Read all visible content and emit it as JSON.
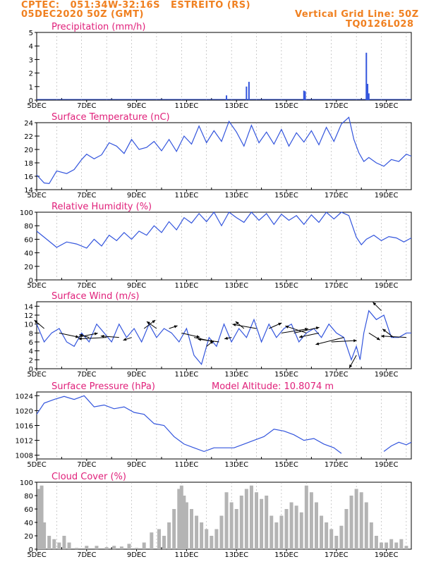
{
  "header": {
    "line1": "CPTEC:   051:34W-32:16S   ESTREITO (RS)",
    "line2": "05DEC2020 50Z (GMT)",
    "right1": "Vertical Grid Line: 50Z",
    "right2": "TQ0126L028"
  },
  "colors": {
    "header": "#f08020",
    "title": "#e0207a",
    "series": "#3355dd",
    "cloud": "#b4b4b4",
    "arrow": "#000000"
  },
  "chart_data": [
    {
      "type": "bar",
      "title": "Precipitation (mm/h)",
      "x_ticks": [
        "5DEC",
        "7DEC",
        "9DEC",
        "11DEC",
        "13DEC",
        "15DEC",
        "17DEC",
        "19DEC"
      ],
      "ylim": [
        0,
        5
      ],
      "y_ticks": [
        0,
        1,
        2,
        3,
        4,
        5
      ],
      "x": [
        12.6,
        13.4,
        13.5,
        15.7,
        15.75,
        18.2,
        18.25,
        18.3
      ],
      "values": [
        0.35,
        1.0,
        1.35,
        0.7,
        0.65,
        3.5,
        1.2,
        0.5
      ]
    },
    {
      "type": "line",
      "title": "Surface Temperature (nC)",
      "x_ticks": [
        "5DEC",
        "7DEC",
        "9DEC",
        "11DEC",
        "13DEC",
        "15DEC",
        "17DEC",
        "19DEC"
      ],
      "ylim": [
        14,
        24
      ],
      "y_ticks": [
        14,
        16,
        18,
        20,
        22,
        24
      ],
      "x": [
        5.0,
        5.3,
        5.5,
        5.8,
        6.2,
        6.5,
        6.8,
        7.0,
        7.3,
        7.6,
        7.9,
        8.2,
        8.5,
        8.8,
        9.1,
        9.4,
        9.7,
        10.0,
        10.3,
        10.6,
        10.9,
        11.2,
        11.5,
        11.8,
        12.1,
        12.4,
        12.7,
        13.0,
        13.3,
        13.6,
        13.9,
        14.2,
        14.5,
        14.8,
        15.1,
        15.4,
        15.7,
        16.0,
        16.3,
        16.6,
        16.9,
        17.2,
        17.5,
        17.7,
        17.9,
        18.1,
        18.3,
        18.6,
        18.9,
        19.2,
        19.5,
        19.8,
        20.0
      ],
      "values": [
        16.2,
        15.0,
        14.9,
        16.8,
        16.4,
        17.0,
        18.5,
        19.3,
        18.6,
        19.2,
        21.0,
        20.5,
        19.4,
        21.5,
        20.0,
        20.3,
        21.2,
        19.8,
        21.5,
        19.7,
        22.0,
        20.8,
        23.5,
        21.0,
        22.8,
        21.2,
        24.2,
        22.6,
        20.5,
        23.6,
        21.0,
        22.6,
        20.8,
        23.0,
        20.5,
        22.5,
        21.1,
        22.8,
        20.7,
        23.3,
        21.2,
        23.8,
        24.8,
        21.5,
        19.5,
        18.2,
        18.8,
        18.0,
        17.5,
        18.5,
        18.2,
        19.3,
        19.0
      ]
    },
    {
      "type": "line",
      "title": "Relative Humidity (%)",
      "x_ticks": [
        "5DEC",
        "7DEC",
        "9DEC",
        "11DEC",
        "13DEC",
        "15DEC",
        "17DEC",
        "19DEC"
      ],
      "ylim": [
        0,
        100
      ],
      "y_ticks": [
        0,
        20,
        40,
        60,
        80,
        100
      ],
      "x": [
        5.0,
        5.4,
        5.8,
        6.2,
        6.6,
        7.0,
        7.3,
        7.6,
        7.9,
        8.2,
        8.5,
        8.8,
        9.1,
        9.4,
        9.7,
        10.0,
        10.3,
        10.6,
        10.9,
        11.2,
        11.5,
        11.8,
        12.1,
        12.4,
        12.7,
        13.0,
        13.3,
        13.6,
        13.9,
        14.2,
        14.5,
        14.8,
        15.1,
        15.4,
        15.7,
        16.0,
        16.3,
        16.6,
        16.9,
        17.2,
        17.5,
        17.8,
        18.0,
        18.2,
        18.5,
        18.8,
        19.1,
        19.4,
        19.7,
        20.0
      ],
      "values": [
        72,
        60,
        48,
        56,
        53,
        47,
        60,
        50,
        66,
        58,
        70,
        60,
        72,
        66,
        80,
        70,
        86,
        74,
        92,
        84,
        98,
        86,
        100,
        80,
        100,
        92,
        85,
        100,
        88,
        98,
        82,
        97,
        88,
        95,
        82,
        96,
        85,
        100,
        90,
        100,
        95,
        63,
        52,
        60,
        66,
        58,
        64,
        62,
        56,
        62
      ]
    },
    {
      "type": "line",
      "title": "Surface Wind (m/s)",
      "x_ticks": [
        "5DEC",
        "7DEC",
        "9DEC",
        "11DEC",
        "13DEC",
        "15DEC",
        "17DEC",
        "19DEC"
      ],
      "ylim": [
        0,
        15
      ],
      "y_ticks": [
        0,
        2,
        4,
        6,
        8,
        10,
        12,
        14
      ],
      "x": [
        5.0,
        5.3,
        5.6,
        5.9,
        6.2,
        6.5,
        6.8,
        7.1,
        7.4,
        7.7,
        8.0,
        8.3,
        8.6,
        8.9,
        9.2,
        9.5,
        9.8,
        10.1,
        10.4,
        10.7,
        11.0,
        11.3,
        11.6,
        11.9,
        12.2,
        12.5,
        12.8,
        13.1,
        13.4,
        13.7,
        14.0,
        14.3,
        14.6,
        14.9,
        15.2,
        15.5,
        15.8,
        16.1,
        16.4,
        16.7,
        17.0,
        17.3,
        17.6,
        17.8,
        17.95,
        18.1,
        18.3,
        18.6,
        18.9,
        19.2,
        19.5,
        19.8,
        20.0
      ],
      "values": [
        10,
        6,
        8,
        9,
        6,
        5,
        8,
        6,
        10,
        8,
        6,
        10,
        7,
        9,
        6,
        10,
        7,
        9,
        8,
        6,
        9,
        3,
        1,
        7,
        5,
        10,
        6,
        9,
        7,
        11,
        6,
        10,
        7,
        9,
        10,
        6,
        8,
        9,
        7,
        10,
        8,
        7,
        2,
        5,
        2,
        8,
        13,
        11,
        12,
        7,
        7,
        8,
        8
      ],
      "wind_arrow_x": [
        5.3,
        5.9,
        6.6,
        7.1,
        7.8,
        8.3,
        8.8,
        9.3,
        9.8,
        10.3,
        10.8,
        11.3,
        11.8,
        12.3,
        12.8,
        13.3,
        13.8,
        14.3,
        14.8,
        15.3,
        15.8,
        16.3,
        16.8,
        17.3,
        17.8,
        18.3,
        18.8,
        19.3,
        19.8
      ],
      "wind_arrow_y": [
        9,
        8,
        7,
        7,
        7,
        7,
        7,
        9,
        9,
        9,
        8,
        7,
        5,
        6,
        7,
        9,
        9,
        9,
        8,
        8,
        8,
        8,
        6,
        7,
        3,
        8,
        13,
        7,
        7
      ],
      "wind_arrow_dx": [
        -14,
        28,
        30,
        -14,
        -40,
        -26,
        -12,
        16,
        -14,
        12,
        26,
        28,
        10,
        -30,
        -10,
        -12,
        -34,
        18,
        38,
        36,
        -30,
        -28,
        36,
        -40,
        -10,
        16,
        -12,
        -16,
        -36
      ],
      "wind_arrow_dy": [
        -12,
        6,
        -6,
        -4,
        2,
        -2,
        4,
        -12,
        -10,
        -4,
        6,
        6,
        -8,
        -4,
        2,
        -10,
        -6,
        -8,
        -6,
        -8,
        -10,
        6,
        -2,
        10,
        18,
        10,
        -12,
        -12,
        -2
      ]
    },
    {
      "type": "line",
      "title": "Surface Pressure (hPa)",
      "annotation": "Model Altitude: 10.8074 m",
      "x_ticks": [
        "5DEC",
        "7DEC",
        "9DEC",
        "11DEC",
        "13DEC",
        "15DEC",
        "17DEC",
        "19DEC"
      ],
      "ylim": [
        1007,
        1025
      ],
      "y_ticks": [
        1008,
        1012,
        1016,
        1020,
        1024
      ],
      "x": [
        5.0,
        5.3,
        5.7,
        6.1,
        6.5,
        6.9,
        7.3,
        7.7,
        8.1,
        8.5,
        8.9,
        9.3,
        9.7,
        10.1,
        10.5,
        10.9,
        11.3,
        11.7,
        12.1,
        12.5,
        12.9,
        13.3,
        13.7,
        14.1,
        14.5,
        14.9,
        15.3,
        15.7,
        16.1,
        16.5,
        16.9,
        17.2
      ],
      "values": [
        1019,
        1022,
        1023,
        1023.8,
        1023,
        1024,
        1021,
        1021.5,
        1020.5,
        1021,
        1019.5,
        1019,
        1016.5,
        1016,
        1013,
        1011,
        1010,
        1009,
        1010,
        1010,
        1010,
        1011,
        1012,
        1013,
        1015,
        1014.5,
        1013.5,
        1012,
        1012.5,
        1011,
        1010,
        1008.5
      ],
      "x_tail": [
        18.9,
        19.2,
        19.5,
        19.8,
        20.0
      ],
      "values_tail": [
        1009,
        1010.5,
        1011.5,
        1010.8,
        1011.5
      ]
    },
    {
      "type": "bar",
      "title": "Cloud Cover (%)",
      "x_ticks": [
        "5DEC",
        "7DEC",
        "9DEC",
        "11DEC",
        "13DEC",
        "15DEC",
        "17DEC",
        "19DEC"
      ],
      "ylim": [
        0,
        100
      ],
      "y_ticks": [
        0,
        20,
        40,
        60,
        80,
        100
      ],
      "x": [
        5.1,
        5.2,
        5.3,
        5.5,
        5.7,
        5.9,
        6.1,
        6.3,
        6.6,
        7.0,
        7.4,
        7.8,
        8.1,
        8.4,
        8.7,
        9.0,
        9.3,
        9.6,
        9.9,
        10.1,
        10.3,
        10.5,
        10.7,
        10.8,
        10.9,
        11.0,
        11.2,
        11.4,
        11.6,
        11.8,
        12.0,
        12.2,
        12.4,
        12.6,
        12.8,
        13.0,
        13.2,
        13.4,
        13.6,
        13.8,
        14.0,
        14.2,
        14.4,
        14.6,
        14.8,
        15.0,
        15.2,
        15.4,
        15.6,
        15.8,
        16.0,
        16.2,
        16.4,
        16.6,
        16.8,
        17.0,
        17.2,
        17.4,
        17.6,
        17.8,
        18.0,
        18.2,
        18.4,
        18.6,
        18.8,
        19.0,
        19.2,
        19.4,
        19.6,
        19.8
      ],
      "values": [
        90,
        95,
        40,
        20,
        15,
        10,
        20,
        10,
        2,
        5,
        5,
        3,
        5,
        4,
        8,
        2,
        10,
        25,
        30,
        20,
        40,
        60,
        90,
        95,
        80,
        70,
        60,
        50,
        40,
        30,
        20,
        30,
        50,
        85,
        70,
        60,
        80,
        90,
        95,
        85,
        75,
        80,
        50,
        40,
        50,
        60,
        70,
        65,
        55,
        95,
        85,
        70,
        50,
        40,
        30,
        20,
        35,
        60,
        80,
        90,
        85,
        70,
        40,
        20,
        10,
        10,
        15,
        10,
        15,
        5
      ]
    }
  ]
}
